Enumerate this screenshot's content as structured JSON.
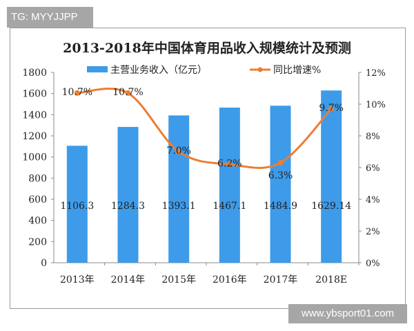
{
  "overlay": {
    "top_tag": "TG: MYYJJPP",
    "bottom_tag": "www.ybsport01.com"
  },
  "chart_data": {
    "type": "bar+line",
    "title": "2013-2018年中国体育用品收入规模统计及预测",
    "categories": [
      "2013年",
      "2014年",
      "2015年",
      "2016年",
      "2017年",
      "2018E"
    ],
    "series": [
      {
        "name": "主营业务收入（亿元）",
        "type": "bar",
        "axis": "left",
        "color": "#3d9be9",
        "values": [
          1106.3,
          1284.3,
          1393.1,
          1467.1,
          1484.9,
          1629.14
        ],
        "labels": [
          "1106.3",
          "1284.3",
          "1393.1",
          "1467.1",
          "1484.9",
          "1629.14"
        ]
      },
      {
        "name": "同比增速%",
        "type": "line",
        "axis": "right",
        "color": "#ed7d31",
        "values": [
          10.7,
          10.7,
          7.0,
          6.2,
          6.3,
          9.7
        ],
        "labels": [
          "10.7%",
          "10.7%",
          "7.0%",
          "6.2%",
          "6.3%",
          "9.7%"
        ]
      }
    ],
    "left_axis": {
      "ylim": [
        0,
        1800
      ],
      "ticks": [
        "0",
        "200",
        "400",
        "600",
        "800",
        "1000",
        "1200",
        "1400",
        "1600",
        "1800"
      ]
    },
    "right_axis": {
      "ylim": [
        0,
        12
      ],
      "ticks": [
        "0%",
        "2%",
        "4%",
        "6%",
        "8%",
        "10%",
        "12%"
      ]
    },
    "legend": "top",
    "grid": false
  }
}
